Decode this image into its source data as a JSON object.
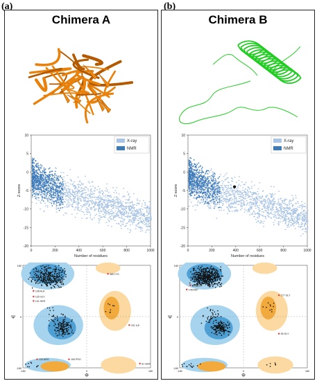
{
  "figure": {
    "panels": [
      {
        "tag": "(a)",
        "title": "Chimera A",
        "ribbon_color": "#e8820c",
        "zscore_marker": null,
        "zplot": {
          "ylabel": "Z-score",
          "xlabel": "Number of residues",
          "legend": [
            "X-ray",
            "NMR"
          ],
          "yticks": [
            "10",
            "5",
            "0",
            "-5",
            "-10",
            "-15",
            "-20"
          ],
          "xticks": [
            "0",
            "200",
            "400",
            "600",
            "800",
            "1000"
          ]
        },
        "rama": {
          "ylabel": "Ψ",
          "xlabel": "Φ",
          "ytick_labels": [
            "180",
            "0",
            "-180"
          ],
          "xtick_labels": [
            "-180",
            "0",
            "180"
          ],
          "outlier_labels": [
            "108 ALA",
            "125 GLY",
            "131 SER",
            "380 LYS",
            "231 ILE",
            "133 ARG",
            "196 PRO",
            "91 SER"
          ]
        }
      },
      {
        "tag": "(b)",
        "title": "Chimera B",
        "ribbon_color": "#22cc22",
        "zscore_marker": {
          "residues": 390,
          "zscore": -4
        },
        "zplot": {
          "ylabel": "Z-score",
          "xlabel": "Number of residues",
          "legend": [
            "X-ray",
            "NMR"
          ],
          "yticks": [
            "10",
            "5",
            "0",
            "-5",
            "-10",
            "-15",
            "-20"
          ],
          "xticks": [
            "0",
            "200",
            "400",
            "600",
            "800",
            "1000"
          ]
        },
        "rama": {
          "ylabel": "Ψ",
          "xlabel": "Φ",
          "ytick_labels": [
            "180",
            "0",
            "-180"
          ],
          "xtick_labels": [
            "-180",
            "0",
            "180"
          ],
          "outlier_labels": [
            "236 GLU",
            "148 ASP",
            "177 GLY",
            "55 GLY"
          ]
        }
      }
    ],
    "colors": {
      "xray": "#a9c4e4",
      "nmr": "#3d7ab8",
      "rama_blue_core": "#4e9fd4",
      "rama_blue_allowed": "#a6d3ee",
      "rama_orange_core": "#f2aa3c",
      "rama_orange_allowed": "#fbd9a0"
    }
  }
}
